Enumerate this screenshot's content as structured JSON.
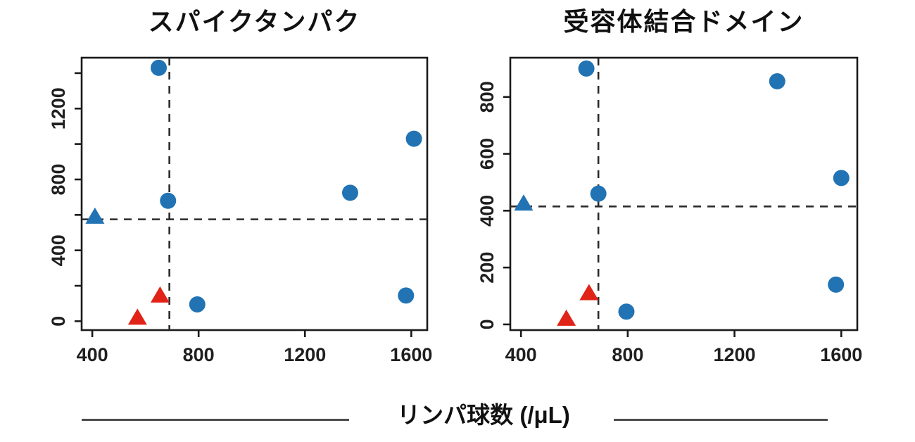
{
  "page": {
    "background": "#ffffff"
  },
  "xlabel": {
    "text": "リンパ球数 (/μL)"
  },
  "colors": {
    "marker_blue": "#2173b4",
    "marker_red": "#e02417",
    "axis": "#1a1a1a",
    "tick_label": "#1f1f1f",
    "dashed_line": "#2b2b2b",
    "rule": "#4d4d4d"
  },
  "chart_data": [
    {
      "type": "scatter",
      "title": "スパイクタンパク",
      "xlabel": "リンパ球数 (/μL)",
      "ylabel": "",
      "xlim": [
        360,
        1660
      ],
      "ylim": [
        -50,
        1487
      ],
      "x_ticks": [
        400,
        800,
        1200,
        1600
      ],
      "x_tick_labels": [
        "400",
        "800",
        "1200",
        "1600"
      ],
      "y_ticks": [
        0,
        200,
        400,
        600,
        800,
        1000,
        1200,
        1400
      ],
      "y_tick_labels": [
        "0",
        "",
        "400",
        "",
        "800",
        "",
        "1200",
        ""
      ],
      "grid": false,
      "legend": "none",
      "reference_lines": {
        "style": "dashed",
        "vertical_x": 690,
        "horizontal_y": 575
      },
      "series": [
        {
          "name": "blue-circles",
          "marker": "circle",
          "color": "#2173b4",
          "points": [
            [
              650,
              1430
            ],
            [
              685,
              680
            ],
            [
              795,
              95
            ],
            [
              1370,
              725
            ],
            [
              1610,
              1030
            ],
            [
              1580,
              145
            ]
          ]
        },
        {
          "name": "blue-triangle",
          "marker": "triangle",
          "color": "#2173b4",
          "points": [
            [
              410,
              590
            ]
          ]
        },
        {
          "name": "red-triangles",
          "marker": "triangle",
          "color": "#e02417",
          "points": [
            [
              570,
              20
            ],
            [
              655,
              145
            ]
          ]
        }
      ]
    },
    {
      "type": "scatter",
      "title": "受容体結合ドメイン",
      "xlabel": "リンパ球数 (/μL)",
      "ylabel": "",
      "xlim": [
        360,
        1660
      ],
      "ylim": [
        -20,
        938
      ],
      "x_ticks": [
        400,
        800,
        1200,
        1600
      ],
      "x_tick_labels": [
        "400",
        "800",
        "1200",
        "1600"
      ],
      "y_ticks": [
        0,
        200,
        400,
        600,
        800
      ],
      "y_tick_labels": [
        "0",
        "200",
        "400",
        "600",
        "800"
      ],
      "grid": false,
      "legend": "none",
      "reference_lines": {
        "style": "dashed",
        "vertical_x": 690,
        "horizontal_y": 415
      },
      "series": [
        {
          "name": "blue-circles",
          "marker": "circle",
          "color": "#2173b4",
          "points": [
            [
              645,
              900
            ],
            [
              690,
              460
            ],
            [
              795,
              45
            ],
            [
              1360,
              855
            ],
            [
              1600,
              515
            ],
            [
              1580,
              140
            ]
          ]
        },
        {
          "name": "blue-triangle",
          "marker": "triangle",
          "color": "#2173b4",
          "points": [
            [
              410,
              425
            ]
          ]
        },
        {
          "name": "red-triangles",
          "marker": "triangle",
          "color": "#e02417",
          "points": [
            [
              570,
              20
            ],
            [
              655,
              110
            ]
          ]
        }
      ]
    }
  ]
}
